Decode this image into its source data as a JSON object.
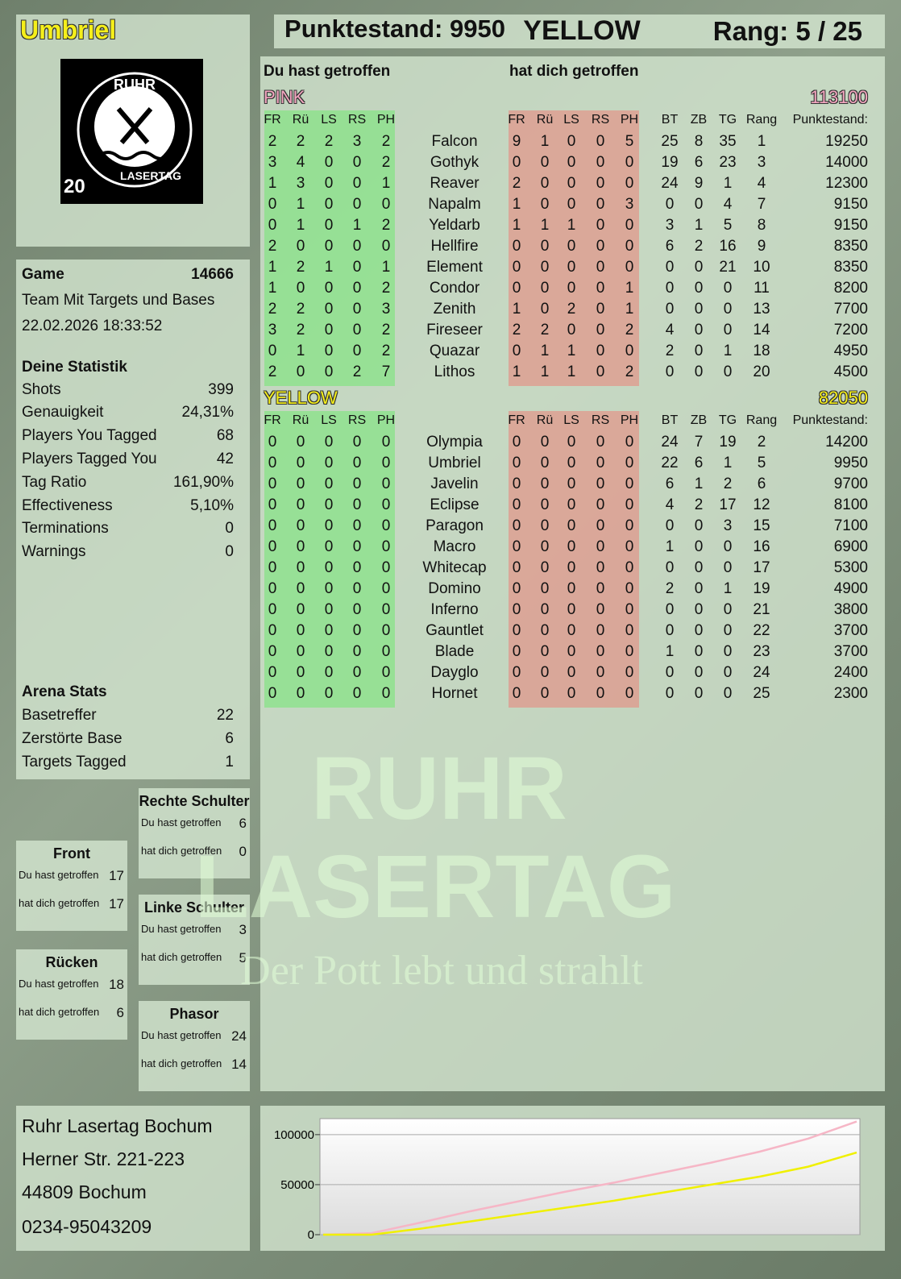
{
  "header": {
    "player": "Umbriel",
    "score": "Punktestand: 9950",
    "team": "YELLOW",
    "rank": "Rang: 5 / 25"
  },
  "logo": {
    "top": "RUHR",
    "bottom": "LASERTAG",
    "number": "20"
  },
  "game": {
    "label": "Game",
    "id": 14666,
    "mode": "Team Mit Targets und Bases",
    "date": "22.02.2026 18:33:52"
  },
  "stats": {
    "title": "Deine Statistik",
    "rows": [
      [
        "Shots",
        399
      ],
      [
        "Genauigkeit",
        "24,31%"
      ],
      [
        "Players You Tagged",
        68
      ],
      [
        "Players Tagged You",
        42
      ],
      [
        "Tag Ratio",
        "161,90%"
      ],
      [
        "Effectiveness",
        "5,10%"
      ],
      [
        "Terminations",
        0
      ],
      [
        "Warnings",
        0
      ]
    ]
  },
  "arena": {
    "title": "Arena Stats",
    "rows": [
      [
        "Basetreffer",
        22
      ],
      [
        "Zerstörte Base",
        6
      ],
      [
        "Targets Tagged",
        1
      ]
    ]
  },
  "hit_labels": [
    "Du hast getroffen",
    "hat dich getroffen"
  ],
  "zones": [
    {
      "name": "Rechte Schulter",
      "values": [
        6,
        0
      ]
    },
    {
      "name": "Front",
      "values": [
        17,
        17
      ]
    },
    {
      "name": "Linke Schulter",
      "values": [
        3,
        5
      ]
    },
    {
      "name": "Rücken",
      "values": [
        18,
        6
      ]
    },
    {
      "name": "Phasor",
      "values": [
        24,
        14
      ]
    }
  ],
  "address": [
    "Ruhr Lasertag Bochum",
    "Herner Str. 221-223",
    "44809 Bochum",
    "0234-95043209"
  ],
  "watermark": [
    "RUHR",
    "LASERTAG",
    "Der Pott lebt und strahlt"
  ],
  "table": {
    "headings": [
      "Du hast getroffen",
      "hat dich getroffen"
    ],
    "hit_columns": [
      "FR",
      "Rü",
      "LS",
      "RS",
      "PH"
    ],
    "stat_columns": [
      "BT",
      "ZB",
      "TG",
      "Rang",
      "Punktestand:"
    ],
    "teams": [
      {
        "name": "PINK",
        "score": 113100,
        "color": "#f4a6c0",
        "rows": [
          {
            "name": "Falcon",
            "out": [
              2,
              2,
              2,
              3,
              2
            ],
            "in": [
              9,
              1,
              0,
              0,
              5
            ],
            "stats": [
              25,
              8,
              35,
              1,
              19250
            ]
          },
          {
            "name": "Gothyk",
            "out": [
              3,
              4,
              0,
              0,
              2
            ],
            "in": [
              0,
              0,
              0,
              0,
              0
            ],
            "stats": [
              19,
              6,
              23,
              3,
              14000
            ]
          },
          {
            "name": "Reaver",
            "out": [
              1,
              3,
              0,
              0,
              1
            ],
            "in": [
              2,
              0,
              0,
              0,
              0
            ],
            "stats": [
              24,
              9,
              1,
              4,
              12300
            ]
          },
          {
            "name": "Napalm",
            "out": [
              0,
              1,
              0,
              0,
              0
            ],
            "in": [
              1,
              0,
              0,
              0,
              3
            ],
            "stats": [
              0,
              0,
              4,
              7,
              9150
            ]
          },
          {
            "name": "Yeldarb",
            "out": [
              0,
              1,
              0,
              1,
              2
            ],
            "in": [
              1,
              1,
              1,
              0,
              0
            ],
            "stats": [
              3,
              1,
              5,
              8,
              9150
            ]
          },
          {
            "name": "Hellfire",
            "out": [
              2,
              0,
              0,
              0,
              0
            ],
            "in": [
              0,
              0,
              0,
              0,
              0
            ],
            "stats": [
              6,
              2,
              16,
              9,
              8350
            ]
          },
          {
            "name": "Element",
            "out": [
              1,
              2,
              1,
              0,
              1
            ],
            "in": [
              0,
              0,
              0,
              0,
              0
            ],
            "stats": [
              0,
              0,
              21,
              10,
              8350
            ]
          },
          {
            "name": "Condor",
            "out": [
              1,
              0,
              0,
              0,
              2
            ],
            "in": [
              0,
              0,
              0,
              0,
              1
            ],
            "stats": [
              0,
              0,
              0,
              11,
              8200
            ]
          },
          {
            "name": "Zenith",
            "out": [
              2,
              2,
              0,
              0,
              3
            ],
            "in": [
              1,
              0,
              2,
              0,
              1
            ],
            "stats": [
              0,
              0,
              0,
              13,
              7700
            ]
          },
          {
            "name": "Fireseer",
            "out": [
              3,
              2,
              0,
              0,
              2
            ],
            "in": [
              2,
              2,
              0,
              0,
              2
            ],
            "stats": [
              4,
              0,
              0,
              14,
              7200
            ]
          },
          {
            "name": "Quazar",
            "out": [
              0,
              1,
              0,
              0,
              2
            ],
            "in": [
              0,
              1,
              1,
              0,
              0
            ],
            "stats": [
              2,
              0,
              1,
              18,
              4950
            ]
          },
          {
            "name": "Lithos",
            "out": [
              2,
              0,
              0,
              2,
              7
            ],
            "in": [
              1,
              1,
              1,
              0,
              2
            ],
            "stats": [
              0,
              0,
              0,
              20,
              4500
            ]
          }
        ]
      },
      {
        "name": "YELLOW",
        "score": 82050,
        "color": "#f5ef1a",
        "rows": [
          {
            "name": "Olympia",
            "out": [
              0,
              0,
              0,
              0,
              0
            ],
            "in": [
              0,
              0,
              0,
              0,
              0
            ],
            "stats": [
              24,
              7,
              19,
              2,
              14200
            ]
          },
          {
            "name": "Umbriel",
            "out": [
              0,
              0,
              0,
              0,
              0
            ],
            "in": [
              0,
              0,
              0,
              0,
              0
            ],
            "stats": [
              22,
              6,
              1,
              5,
              9950
            ]
          },
          {
            "name": "Javelin",
            "out": [
              0,
              0,
              0,
              0,
              0
            ],
            "in": [
              0,
              0,
              0,
              0,
              0
            ],
            "stats": [
              6,
              1,
              2,
              6,
              9700
            ]
          },
          {
            "name": "Eclipse",
            "out": [
              0,
              0,
              0,
              0,
              0
            ],
            "in": [
              0,
              0,
              0,
              0,
              0
            ],
            "stats": [
              4,
              2,
              17,
              12,
              8100
            ]
          },
          {
            "name": "Paragon",
            "out": [
              0,
              0,
              0,
              0,
              0
            ],
            "in": [
              0,
              0,
              0,
              0,
              0
            ],
            "stats": [
              0,
              0,
              3,
              15,
              7100
            ]
          },
          {
            "name": "Macro",
            "out": [
              0,
              0,
              0,
              0,
              0
            ],
            "in": [
              0,
              0,
              0,
              0,
              0
            ],
            "stats": [
              1,
              0,
              0,
              16,
              6900
            ]
          },
          {
            "name": "Whitecap",
            "out": [
              0,
              0,
              0,
              0,
              0
            ],
            "in": [
              0,
              0,
              0,
              0,
              0
            ],
            "stats": [
              0,
              0,
              0,
              17,
              5300
            ]
          },
          {
            "name": "Domino",
            "out": [
              0,
              0,
              0,
              0,
              0
            ],
            "in": [
              0,
              0,
              0,
              0,
              0
            ],
            "stats": [
              2,
              0,
              1,
              19,
              4900
            ]
          },
          {
            "name": "Inferno",
            "out": [
              0,
              0,
              0,
              0,
              0
            ],
            "in": [
              0,
              0,
              0,
              0,
              0
            ],
            "stats": [
              0,
              0,
              0,
              21,
              3800
            ]
          },
          {
            "name": "Gauntlet",
            "out": [
              0,
              0,
              0,
              0,
              0
            ],
            "in": [
              0,
              0,
              0,
              0,
              0
            ],
            "stats": [
              0,
              0,
              0,
              22,
              3700
            ]
          },
          {
            "name": "Blade",
            "out": [
              0,
              0,
              0,
              0,
              0
            ],
            "in": [
              0,
              0,
              0,
              0,
              0
            ],
            "stats": [
              1,
              0,
              0,
              23,
              3700
            ]
          },
          {
            "name": "Dayglo",
            "out": [
              0,
              0,
              0,
              0,
              0
            ],
            "in": [
              0,
              0,
              0,
              0,
              0
            ],
            "stats": [
              0,
              0,
              0,
              24,
              2400
            ]
          },
          {
            "name": "Hornet",
            "out": [
              0,
              0,
              0,
              0,
              0
            ],
            "in": [
              0,
              0,
              0,
              0,
              0
            ],
            "stats": [
              0,
              0,
              0,
              25,
              2300
            ]
          }
        ]
      }
    ]
  },
  "chart_data": {
    "type": "line",
    "categories": [
      null,
      null,
      null,
      null,
      null,
      null,
      null,
      null,
      null,
      null,
      null,
      null
    ],
    "series": [
      {
        "name": "PINK",
        "color": "#f6b6c6",
        "values": [
          0,
          1500,
          12000,
          23000,
          33000,
          43000,
          52000,
          62000,
          72000,
          83000,
          96000,
          113100
        ]
      },
      {
        "name": "YELLOW",
        "color": "#f0f000",
        "values": [
          0,
          0,
          6000,
          13000,
          20000,
          27000,
          34000,
          42000,
          50000,
          58000,
          68000,
          82050
        ]
      }
    ],
    "ylim": [
      0,
      116000
    ],
    "yticks": [
      0,
      50000,
      100000
    ],
    "grid": true
  }
}
